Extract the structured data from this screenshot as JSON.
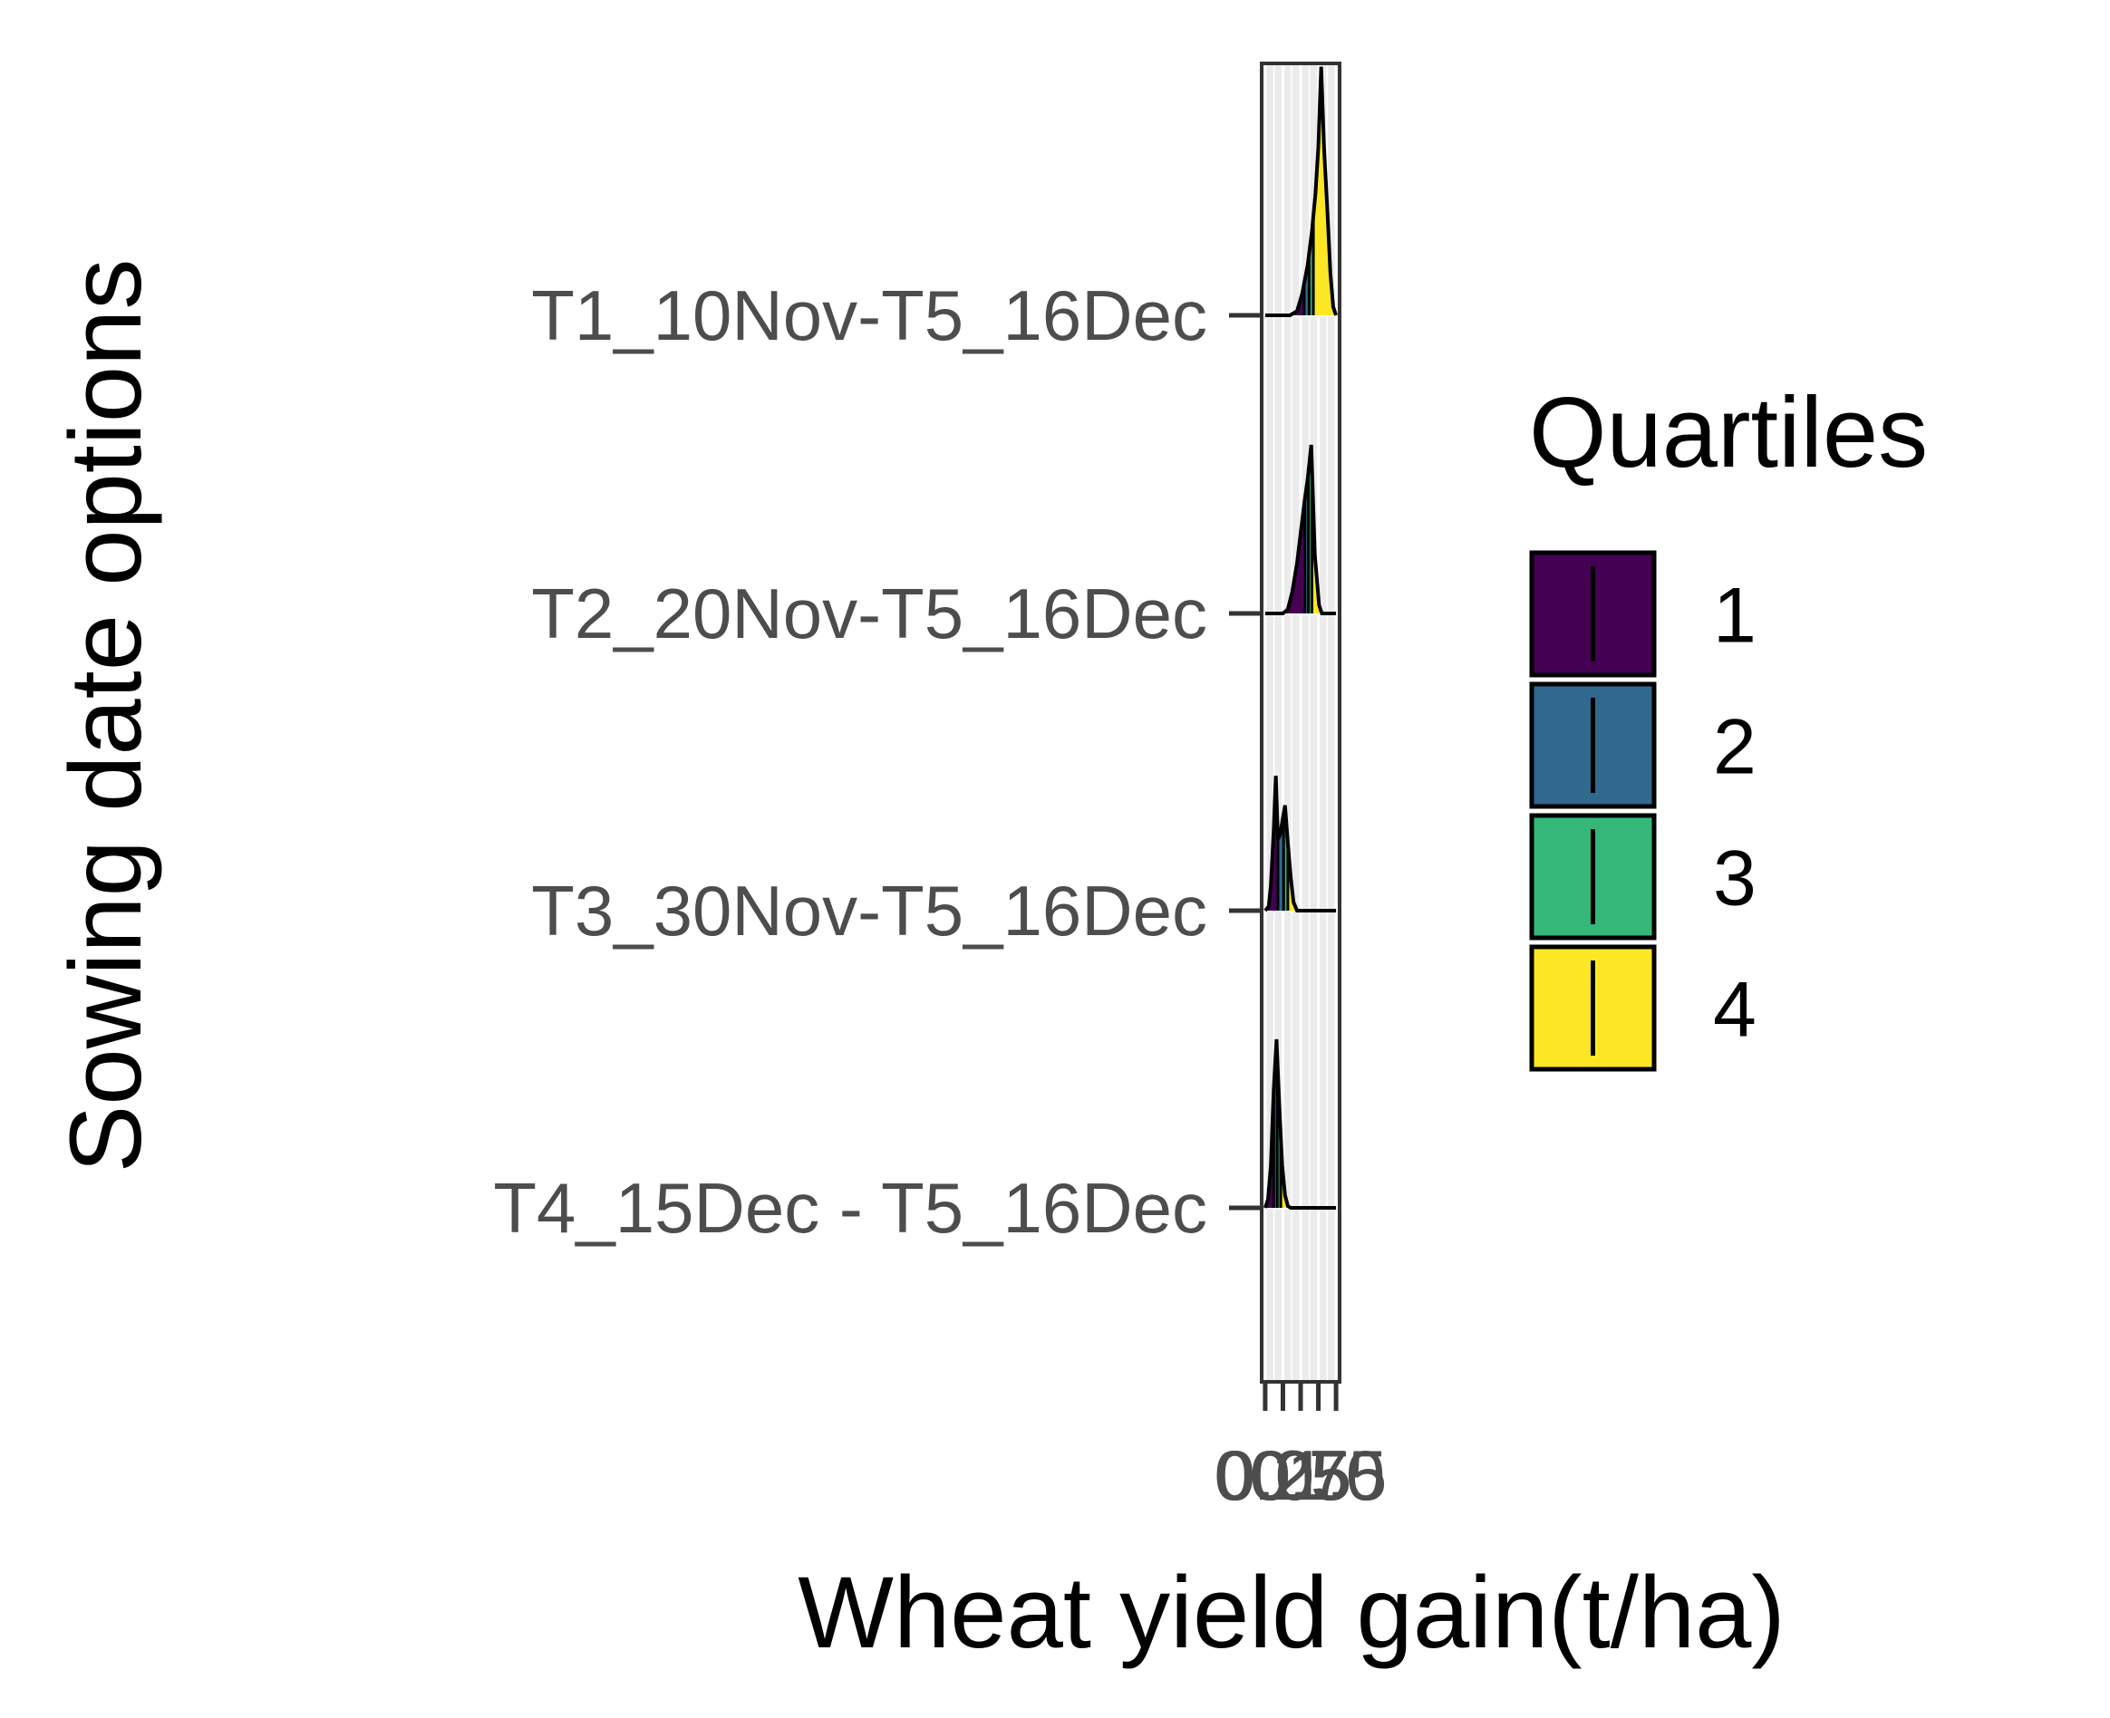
{
  "chart_data": {
    "type": "ridgeline",
    "title": "",
    "xlabel": "Wheat yield gain(t/ha)",
    "ylabel": "Sowing date options",
    "x_ticks": [
      "0.0",
      "0.25",
      "0.5",
      "0.75",
      "1.0"
    ],
    "x_range": [
      -0.05,
      1.05
    ],
    "categories": [
      "T4_15Dec - T5_16Dec",
      "T3_30Nov-T5_16Dec",
      "T2_20Nov-T5_16Dec",
      "T1_10Nov-T5_16Dec"
    ],
    "ridges": [
      {
        "category": "T1_10Nov-T5_16Dec",
        "x": [
          0.0,
          0.35,
          0.45,
          0.52,
          0.6,
          0.66,
          0.71,
          0.75,
          0.79,
          0.83,
          0.88,
          0.92,
          0.96,
          1.0
        ],
        "density": [
          0.0,
          0.0,
          0.05,
          0.25,
          0.6,
          1.0,
          1.45,
          2.0,
          2.95,
          2.0,
          1.2,
          0.5,
          0.1,
          0.0
        ],
        "quartile_breaks": [
          0.55,
          0.62,
          0.68
        ]
      },
      {
        "category": "T2_20Nov-T5_16Dec",
        "x": [
          0.0,
          0.25,
          0.32,
          0.38,
          0.45,
          0.5,
          0.55,
          0.6,
          0.65,
          0.7,
          0.76,
          0.8,
          1.0
        ],
        "density": [
          0.0,
          0.0,
          0.05,
          0.25,
          0.6,
          0.95,
          1.3,
          1.6,
          2.0,
          0.7,
          0.1,
          0.0,
          0.0
        ],
        "quartile_breaks": [
          0.56,
          0.61,
          0.66
        ]
      },
      {
        "category": "T3_30Nov-T5_16Dec",
        "x": [
          0.0,
          0.05,
          0.08,
          0.12,
          0.15,
          0.18,
          0.21,
          0.24,
          0.28,
          0.32,
          0.36,
          0.4,
          0.45,
          1.0
        ],
        "density": [
          0.0,
          0.05,
          0.3,
          0.95,
          1.6,
          0.85,
          0.9,
          1.05,
          1.25,
          0.8,
          0.4,
          0.1,
          0.0,
          0.0
        ],
        "quartile_breaks": [
          0.18,
          0.26,
          0.32
        ]
      },
      {
        "category": "T4_15Dec - T5_16Dec",
        "x": [
          0.0,
          0.04,
          0.08,
          0.12,
          0.16,
          0.2,
          0.24,
          0.28,
          0.32,
          0.36,
          1.0
        ],
        "density": [
          0.0,
          0.1,
          0.5,
          1.4,
          2.0,
          1.2,
          0.5,
          0.15,
          0.02,
          0.0,
          0.0
        ],
        "quartile_breaks": [
          0.12,
          0.17,
          0.22
        ]
      }
    ],
    "legend": {
      "title": "Quartiles",
      "placement": "right",
      "items": [
        {
          "label": "1",
          "color": "#440154"
        },
        {
          "label": "2",
          "color": "#31688E"
        },
        {
          "label": "3",
          "color": "#35B779"
        },
        {
          "label": "4",
          "color": "#FDE725"
        }
      ]
    },
    "panel_background": "#ebebeb",
    "grid": true
  }
}
